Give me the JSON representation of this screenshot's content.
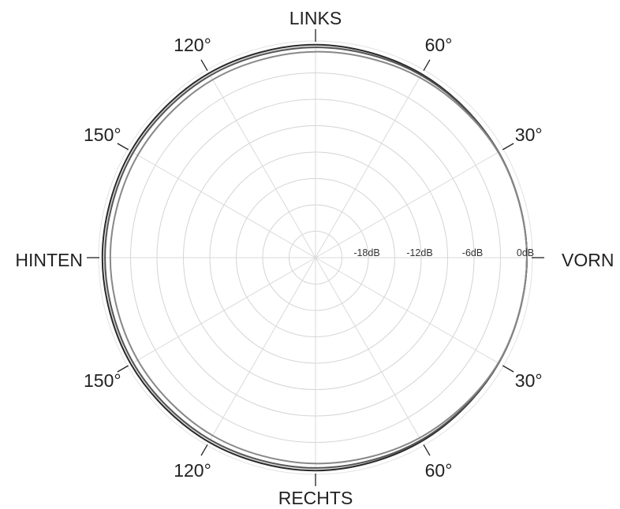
{
  "chart_data": {
    "type": "polar",
    "title": "",
    "direction_labels": {
      "front": "VORN",
      "left": "LINKS",
      "back": "HINTEN",
      "right": "RECHTS"
    },
    "angle_labels": [
      {
        "angle": 30,
        "text": "30°"
      },
      {
        "angle": 60,
        "text": "60°"
      },
      {
        "angle": 120,
        "text": "120°"
      },
      {
        "angle": 150,
        "text": "150°"
      },
      {
        "angle": 210,
        "text": "150°"
      },
      {
        "angle": 240,
        "text": "120°"
      },
      {
        "angle": 300,
        "text": "60°"
      },
      {
        "angle": 330,
        "text": "30°"
      }
    ],
    "radial_labels": [
      {
        "value": -18,
        "text": "-18dB"
      },
      {
        "value": -12,
        "text": "-12dB"
      },
      {
        "value": -6,
        "text": "-6dB"
      },
      {
        "value": 0,
        "text": "0dB"
      }
    ],
    "r_range_db": [
      -24,
      0
    ],
    "ring_step_db": 3,
    "spoke_step_deg": 30,
    "grid": true,
    "series": [
      {
        "color": "#2a2a2a",
        "points": [
          {
            "angle": 0,
            "db": 0
          },
          {
            "angle": 30,
            "db": 0
          },
          {
            "angle": 60,
            "db": 0.1
          },
          {
            "angle": 90,
            "db": 0.2
          },
          {
            "angle": 120,
            "db": 0.2
          },
          {
            "angle": 150,
            "db": 0.2
          },
          {
            "angle": 180,
            "db": 0.2
          },
          {
            "angle": 210,
            "db": 0.2
          },
          {
            "angle": 240,
            "db": 0.2
          },
          {
            "angle": 270,
            "db": 0.2
          },
          {
            "angle": 300,
            "db": 0.1
          },
          {
            "angle": 330,
            "db": 0
          }
        ]
      },
      {
        "color": "#555555",
        "points": [
          {
            "angle": 0,
            "db": 0
          },
          {
            "angle": 30,
            "db": 0
          },
          {
            "angle": 60,
            "db": -0.05
          },
          {
            "angle": 90,
            "db": -0.1
          },
          {
            "angle": 120,
            "db": -0.1
          },
          {
            "angle": 150,
            "db": -0.1
          },
          {
            "angle": 180,
            "db": -0.1
          },
          {
            "angle": 210,
            "db": -0.1
          },
          {
            "angle": 240,
            "db": -0.1
          },
          {
            "angle": 270,
            "db": -0.1
          },
          {
            "angle": 300,
            "db": -0.05
          },
          {
            "angle": 330,
            "db": 0
          }
        ]
      },
      {
        "color": "#888888",
        "points": [
          {
            "angle": 0,
            "db": 0
          },
          {
            "angle": 30,
            "db": -0.05
          },
          {
            "angle": 60,
            "db": -0.35
          },
          {
            "angle": 90,
            "db": -0.6
          },
          {
            "angle": 120,
            "db": -0.65
          },
          {
            "angle": 150,
            "db": -0.7
          },
          {
            "angle": 180,
            "db": -0.7
          },
          {
            "angle": 210,
            "db": -0.7
          },
          {
            "angle": 240,
            "db": -0.65
          },
          {
            "angle": 270,
            "db": -0.6
          },
          {
            "angle": 300,
            "db": -0.35
          },
          {
            "angle": 330,
            "db": -0.05
          }
        ]
      }
    ]
  }
}
